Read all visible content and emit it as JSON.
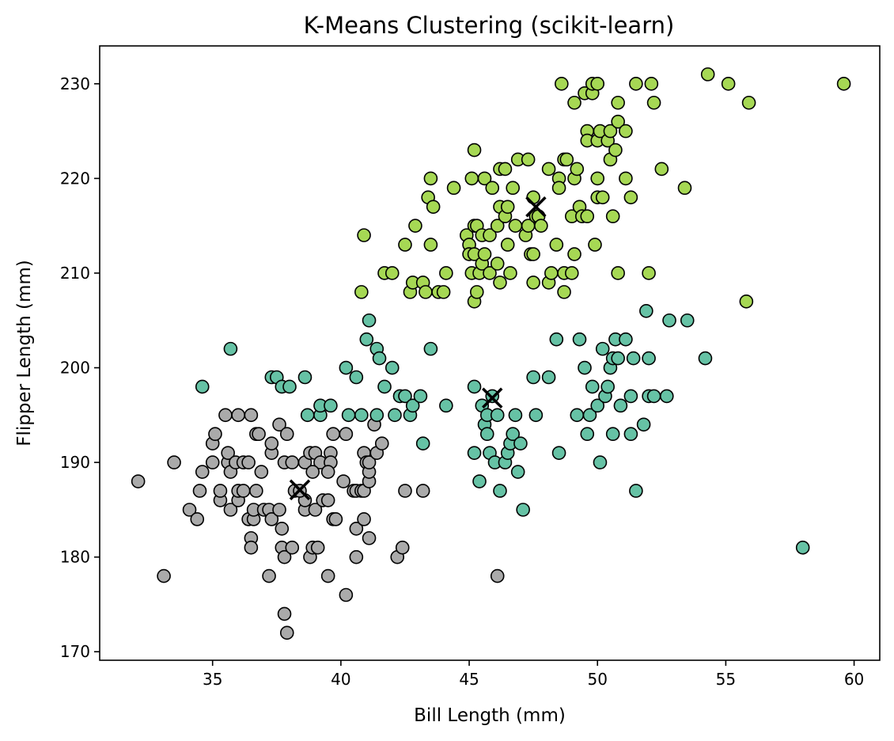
{
  "chart_data": {
    "type": "scatter",
    "title": "K-Means Clustering (scikit-learn)",
    "xlabel": "Bill Length (mm)",
    "ylabel": "Flipper Length (mm)",
    "xlim": [
      30.6,
      61.0
    ],
    "ylim": [
      169.1,
      234.0
    ],
    "x_ticks": [
      35,
      40,
      45,
      50,
      55,
      60
    ],
    "y_ticks": [
      170,
      180,
      190,
      200,
      210,
      220,
      230
    ],
    "grid": false,
    "legend": "none",
    "colors": {
      "cluster_0": "#aaaaaa",
      "cluster_1": "#66c2a5",
      "cluster_2": "#a6d854",
      "centroid": "#000000",
      "marker_edge": "#000000"
    },
    "series": [
      {
        "points": [
          [
            32.1,
            188
          ],
          [
            33.1,
            178
          ],
          [
            33.5,
            190
          ],
          [
            34.1,
            185
          ],
          [
            34.4,
            184
          ],
          [
            34.5,
            187
          ],
          [
            34.6,
            189
          ],
          [
            35.0,
            190
          ],
          [
            35.0,
            192
          ],
          [
            35.1,
            193
          ],
          [
            35.3,
            186
          ],
          [
            35.3,
            187
          ],
          [
            35.5,
            195
          ],
          [
            35.6,
            190
          ],
          [
            35.6,
            191
          ],
          [
            35.7,
            185
          ],
          [
            35.7,
            189
          ],
          [
            35.9,
            190
          ],
          [
            36.0,
            186
          ],
          [
            36.0,
            187
          ],
          [
            36.0,
            195
          ],
          [
            36.2,
            190
          ],
          [
            36.2,
            187
          ],
          [
            36.4,
            184
          ],
          [
            36.4,
            190
          ],
          [
            36.5,
            195
          ],
          [
            36.5,
            182
          ],
          [
            36.5,
            181
          ],
          [
            36.6,
            184
          ],
          [
            36.6,
            185
          ],
          [
            36.7,
            187
          ],
          [
            36.7,
            193
          ],
          [
            36.8,
            193
          ],
          [
            36.9,
            189
          ],
          [
            37.0,
            185
          ],
          [
            37.2,
            185
          ],
          [
            37.2,
            178
          ],
          [
            37.3,
            184
          ],
          [
            37.3,
            191
          ],
          [
            37.3,
            192
          ],
          [
            37.6,
            185
          ],
          [
            37.6,
            194
          ],
          [
            37.7,
            181
          ],
          [
            37.7,
            183
          ],
          [
            37.8,
            180
          ],
          [
            37.8,
            174
          ],
          [
            37.8,
            190
          ],
          [
            37.9,
            172
          ],
          [
            37.9,
            193
          ],
          [
            38.1,
            181
          ],
          [
            38.2,
            187
          ],
          [
            38.6,
            185
          ],
          [
            38.6,
            190
          ],
          [
            38.6,
            186
          ],
          [
            38.8,
            180
          ],
          [
            38.8,
            191
          ],
          [
            38.9,
            181
          ],
          [
            39.0,
            185
          ],
          [
            39.0,
            191
          ],
          [
            39.1,
            181
          ],
          [
            39.2,
            190
          ],
          [
            39.3,
            186
          ],
          [
            39.5,
            178
          ],
          [
            39.5,
            186
          ],
          [
            39.6,
            191
          ],
          [
            39.6,
            190
          ],
          [
            39.7,
            193
          ],
          [
            39.7,
            184
          ],
          [
            39.8,
            184
          ],
          [
            40.1,
            188
          ],
          [
            40.2,
            176
          ],
          [
            40.2,
            193
          ],
          [
            40.5,
            187
          ],
          [
            40.6,
            180
          ],
          [
            40.6,
            183
          ],
          [
            40.6,
            187
          ],
          [
            40.8,
            187
          ],
          [
            40.9,
            184
          ],
          [
            40.9,
            187
          ],
          [
            40.9,
            191
          ],
          [
            41.0,
            190
          ],
          [
            41.1,
            182
          ],
          [
            41.1,
            188
          ],
          [
            41.1,
            189
          ],
          [
            41.1,
            190
          ],
          [
            41.3,
            194
          ],
          [
            41.4,
            191
          ],
          [
            41.6,
            192
          ],
          [
            42.2,
            180
          ],
          [
            42.4,
            181
          ],
          [
            42.5,
            187
          ],
          [
            43.2,
            187
          ],
          [
            46.1,
            178
          ],
          [
            38.4,
            187
          ],
          [
            38.1,
            190
          ],
          [
            38.9,
            189
          ],
          [
            39.5,
            189
          ]
        ]
      },
      {
        "points": [
          [
            34.6,
            198
          ],
          [
            35.7,
            202
          ],
          [
            37.3,
            199
          ],
          [
            37.5,
            199
          ],
          [
            37.7,
            198
          ],
          [
            38.0,
            198
          ],
          [
            38.6,
            199
          ],
          [
            38.7,
            195
          ],
          [
            39.2,
            195
          ],
          [
            39.2,
            196
          ],
          [
            39.6,
            196
          ],
          [
            40.2,
            200
          ],
          [
            40.3,
            195
          ],
          [
            40.6,
            199
          ],
          [
            40.8,
            195
          ],
          [
            41.0,
            203
          ],
          [
            41.1,
            205
          ],
          [
            41.4,
            195
          ],
          [
            41.4,
            202
          ],
          [
            41.5,
            201
          ],
          [
            41.7,
            198
          ],
          [
            42.0,
            200
          ],
          [
            42.1,
            195
          ],
          [
            42.3,
            197
          ],
          [
            42.5,
            197
          ],
          [
            42.7,
            195
          ],
          [
            42.8,
            196
          ],
          [
            43.1,
            197
          ],
          [
            43.2,
            192
          ],
          [
            43.5,
            202
          ],
          [
            44.1,
            196
          ],
          [
            45.2,
            198
          ],
          [
            45.2,
            191
          ],
          [
            45.4,
            188
          ],
          [
            45.5,
            196
          ],
          [
            45.6,
            194
          ],
          [
            45.7,
            195
          ],
          [
            45.7,
            193
          ],
          [
            45.8,
            191
          ],
          [
            45.9,
            197
          ],
          [
            46.0,
            190
          ],
          [
            46.1,
            195
          ],
          [
            46.2,
            187
          ],
          [
            46.4,
            190
          ],
          [
            46.5,
            191
          ],
          [
            46.6,
            192
          ],
          [
            46.7,
            193
          ],
          [
            46.8,
            195
          ],
          [
            46.9,
            189
          ],
          [
            47.0,
            192
          ],
          [
            47.1,
            185
          ],
          [
            47.5,
            199
          ],
          [
            47.6,
            195
          ],
          [
            48.1,
            199
          ],
          [
            48.4,
            203
          ],
          [
            48.5,
            191
          ],
          [
            49.2,
            195
          ],
          [
            49.3,
            203
          ],
          [
            49.5,
            200
          ],
          [
            49.6,
            193
          ],
          [
            49.7,
            195
          ],
          [
            49.8,
            198
          ],
          [
            50.0,
            196
          ],
          [
            50.1,
            190
          ],
          [
            50.2,
            202
          ],
          [
            50.3,
            197
          ],
          [
            50.4,
            198
          ],
          [
            50.5,
            200
          ],
          [
            50.6,
            201
          ],
          [
            50.6,
            193
          ],
          [
            50.7,
            203
          ],
          [
            50.8,
            201
          ],
          [
            50.9,
            196
          ],
          [
            51.1,
            203
          ],
          [
            51.3,
            193
          ],
          [
            51.3,
            197
          ],
          [
            51.4,
            201
          ],
          [
            51.5,
            187
          ],
          [
            51.8,
            194
          ],
          [
            51.9,
            206
          ],
          [
            52.0,
            201
          ],
          [
            52.0,
            197
          ],
          [
            52.2,
            197
          ],
          [
            52.7,
            197
          ],
          [
            52.8,
            205
          ],
          [
            53.5,
            205
          ],
          [
            54.2,
            201
          ],
          [
            58.0,
            181
          ]
        ]
      },
      {
        "points": [
          [
            40.9,
            214
          ],
          [
            40.8,
            208
          ],
          [
            41.7,
            210
          ],
          [
            42.0,
            210
          ],
          [
            42.5,
            213
          ],
          [
            42.7,
            208
          ],
          [
            42.8,
            209
          ],
          [
            42.9,
            215
          ],
          [
            43.2,
            209
          ],
          [
            43.3,
            208
          ],
          [
            43.4,
            218
          ],
          [
            43.5,
            213
          ],
          [
            43.5,
            220
          ],
          [
            43.6,
            217
          ],
          [
            43.8,
            208
          ],
          [
            44.0,
            208
          ],
          [
            44.1,
            210
          ],
          [
            44.4,
            219
          ],
          [
            44.9,
            214
          ],
          [
            45.0,
            213
          ],
          [
            45.0,
            212
          ],
          [
            45.1,
            220
          ],
          [
            45.1,
            210
          ],
          [
            45.2,
            207
          ],
          [
            45.2,
            212
          ],
          [
            45.2,
            215
          ],
          [
            45.2,
            223
          ],
          [
            45.3,
            215
          ],
          [
            45.3,
            208
          ],
          [
            45.4,
            210
          ],
          [
            45.5,
            211
          ],
          [
            45.6,
            212
          ],
          [
            45.5,
            214
          ],
          [
            45.6,
            220
          ],
          [
            45.8,
            210
          ],
          [
            45.8,
            214
          ],
          [
            45.9,
            219
          ],
          [
            46.1,
            215
          ],
          [
            46.1,
            211
          ],
          [
            46.2,
            209
          ],
          [
            46.2,
            217
          ],
          [
            46.2,
            221
          ],
          [
            46.4,
            216
          ],
          [
            46.4,
            221
          ],
          [
            46.5,
            213
          ],
          [
            46.5,
            217
          ],
          [
            46.6,
            210
          ],
          [
            46.7,
            219
          ],
          [
            46.8,
            215
          ],
          [
            46.9,
            222
          ],
          [
            47.2,
            214
          ],
          [
            47.3,
            215
          ],
          [
            47.3,
            222
          ],
          [
            47.4,
            212
          ],
          [
            47.5,
            212
          ],
          [
            47.5,
            218
          ],
          [
            47.5,
            209
          ],
          [
            47.6,
            216
          ],
          [
            47.7,
            216
          ],
          [
            47.8,
            215
          ],
          [
            48.1,
            209
          ],
          [
            48.1,
            221
          ],
          [
            48.2,
            210
          ],
          [
            48.4,
            213
          ],
          [
            48.5,
            220
          ],
          [
            48.5,
            219
          ],
          [
            48.6,
            230
          ],
          [
            48.7,
            222
          ],
          [
            48.7,
            208
          ],
          [
            48.7,
            210
          ],
          [
            48.8,
            222
          ],
          [
            49.0,
            216
          ],
          [
            49.0,
            210
          ],
          [
            49.1,
            212
          ],
          [
            49.1,
            228
          ],
          [
            49.1,
            220
          ],
          [
            49.2,
            221
          ],
          [
            49.3,
            217
          ],
          [
            49.4,
            216
          ],
          [
            49.5,
            229
          ],
          [
            49.6,
            216
          ],
          [
            49.6,
            225
          ],
          [
            49.6,
            224
          ],
          [
            49.8,
            229
          ],
          [
            49.8,
            230
          ],
          [
            49.9,
            213
          ],
          [
            50.0,
            230
          ],
          [
            50.0,
            218
          ],
          [
            50.0,
            220
          ],
          [
            50.0,
            224
          ],
          [
            50.1,
            225
          ],
          [
            50.2,
            218
          ],
          [
            50.4,
            224
          ],
          [
            50.5,
            225
          ],
          [
            50.5,
            222
          ],
          [
            50.6,
            216
          ],
          [
            50.7,
            223
          ],
          [
            50.8,
            226
          ],
          [
            50.8,
            210
          ],
          [
            50.8,
            228
          ],
          [
            51.1,
            225
          ],
          [
            51.1,
            220
          ],
          [
            51.3,
            218
          ],
          [
            51.5,
            230
          ],
          [
            52.0,
            210
          ],
          [
            52.1,
            230
          ],
          [
            52.2,
            228
          ],
          [
            52.5,
            221
          ],
          [
            53.4,
            219
          ],
          [
            54.3,
            231
          ],
          [
            55.1,
            230
          ],
          [
            55.8,
            207
          ],
          [
            55.9,
            228
          ],
          [
            59.6,
            230
          ]
        ]
      }
    ],
    "centroids": [
      [
        38.4,
        187.1
      ],
      [
        45.9,
        196.8
      ],
      [
        47.6,
        217.0
      ]
    ]
  }
}
